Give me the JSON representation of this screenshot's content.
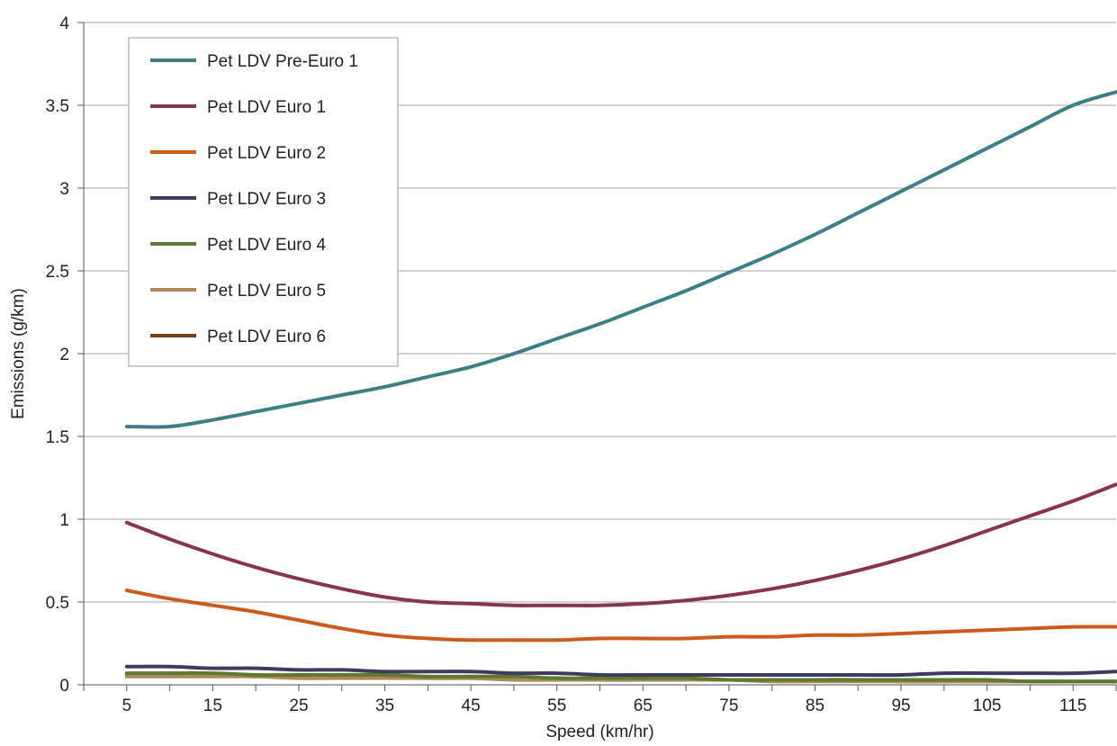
{
  "chart_data": {
    "type": "line",
    "title": "",
    "xlabel": "Speed (km/hr)",
    "ylabel": "Emissions (g/km)",
    "xlim": [
      0,
      120
    ],
    "ylim": [
      0,
      4
    ],
    "x_ticks": [
      5,
      15,
      25,
      35,
      45,
      55,
      65,
      75,
      85,
      95,
      105,
      115
    ],
    "y_ticks": [
      {
        "value": 0,
        "label": "0"
      },
      {
        "value": 0.5,
        "label": "0.5"
      },
      {
        "value": 1,
        "label": "1"
      },
      {
        "value": 1.5,
        "label": "1.5"
      },
      {
        "value": 2,
        "label": "2"
      },
      {
        "value": 2.5,
        "label": "2.5"
      },
      {
        "value": 3,
        "label": "3"
      },
      {
        "value": 3.5,
        "label": "3.5"
      },
      {
        "value": 4,
        "label": "4"
      }
    ],
    "grid": true,
    "legend_position": "top-left",
    "x": [
      5,
      10,
      15,
      20,
      25,
      30,
      35,
      40,
      45,
      50,
      55,
      60,
      65,
      70,
      75,
      80,
      85,
      90,
      95,
      100,
      105,
      110,
      115,
      120
    ],
    "series": [
      {
        "name": "Pet LDV Pre-Euro 1",
        "color": "#3e7f87",
        "values": [
          1.56,
          1.56,
          1.6,
          1.65,
          1.7,
          1.75,
          1.8,
          1.86,
          1.92,
          2.0,
          2.09,
          2.18,
          2.28,
          2.38,
          2.49,
          2.6,
          2.72,
          2.85,
          2.98,
          3.11,
          3.24,
          3.37,
          3.5,
          3.58
        ]
      },
      {
        "name": "Pet LDV Euro 1",
        "color": "#87344f",
        "values": [
          0.98,
          0.88,
          0.79,
          0.71,
          0.64,
          0.58,
          0.53,
          0.5,
          0.49,
          0.48,
          0.48,
          0.48,
          0.49,
          0.51,
          0.54,
          0.58,
          0.63,
          0.69,
          0.76,
          0.84,
          0.93,
          1.02,
          1.11,
          1.21
        ]
      },
      {
        "name": "Pet LDV Euro 2",
        "color": "#cd5a1d",
        "values": [
          0.57,
          0.52,
          0.48,
          0.44,
          0.39,
          0.34,
          0.3,
          0.28,
          0.27,
          0.27,
          0.27,
          0.28,
          0.28,
          0.28,
          0.29,
          0.29,
          0.3,
          0.3,
          0.31,
          0.32,
          0.33,
          0.34,
          0.35,
          0.35
        ]
      },
      {
        "name": "Pet LDV Euro 3",
        "color": "#423a5e",
        "values": [
          0.11,
          0.11,
          0.1,
          0.1,
          0.09,
          0.09,
          0.08,
          0.08,
          0.08,
          0.07,
          0.07,
          0.06,
          0.06,
          0.06,
          0.06,
          0.06,
          0.06,
          0.06,
          0.06,
          0.07,
          0.07,
          0.07,
          0.07,
          0.08
        ]
      },
      {
        "name": "Pet LDV Euro 4",
        "color": "#5d7a2e",
        "values": [
          0.07,
          0.07,
          0.07,
          0.06,
          0.06,
          0.06,
          0.06,
          0.05,
          0.05,
          0.05,
          0.04,
          0.04,
          0.04,
          0.04,
          0.03,
          0.03,
          0.03,
          0.03,
          0.03,
          0.03,
          0.03,
          0.02,
          0.02,
          0.02
        ]
      },
      {
        "name": "Pet LDV Euro 5",
        "color": "#b08a5c",
        "values": [
          0.05,
          0.05,
          0.05,
          0.05,
          0.04,
          0.04,
          0.04,
          0.04,
          0.04,
          0.03,
          0.03,
          0.03,
          0.03,
          0.03,
          0.03,
          0.02,
          0.02,
          0.02,
          0.02,
          0.02,
          0.02,
          0.02,
          0.02,
          0.02
        ]
      },
      {
        "name": "Pet LDV Euro 6",
        "color": "#7a3d14",
        "values": [
          0.06,
          0.06,
          0.06,
          0.05,
          0.05,
          0.05,
          0.05,
          0.04,
          0.04,
          0.04,
          0.04,
          0.03,
          0.03,
          0.03,
          0.03,
          0.03,
          0.03,
          0.03,
          0.02,
          0.02,
          0.02,
          0.02,
          0.02,
          0.02
        ]
      }
    ]
  }
}
